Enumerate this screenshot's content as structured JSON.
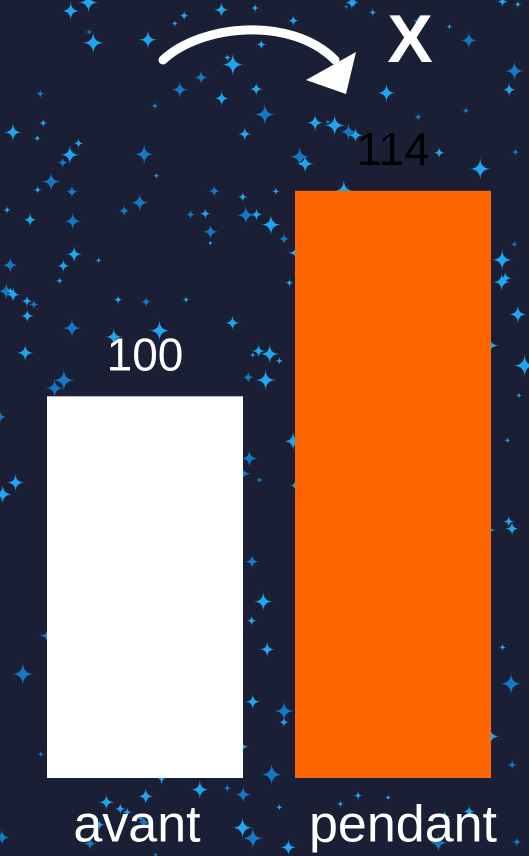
{
  "chart_data": {
    "type": "bar",
    "annotation": "X",
    "categories": [
      "avant",
      "pendant"
    ],
    "values": [
      100,
      114
    ],
    "colors": [
      "#ffffff",
      "#ff6600"
    ],
    "value_label_colors": [
      "#ffffff",
      "#000000"
    ],
    "ylim": [
      74,
      127
    ],
    "grid": false
  }
}
